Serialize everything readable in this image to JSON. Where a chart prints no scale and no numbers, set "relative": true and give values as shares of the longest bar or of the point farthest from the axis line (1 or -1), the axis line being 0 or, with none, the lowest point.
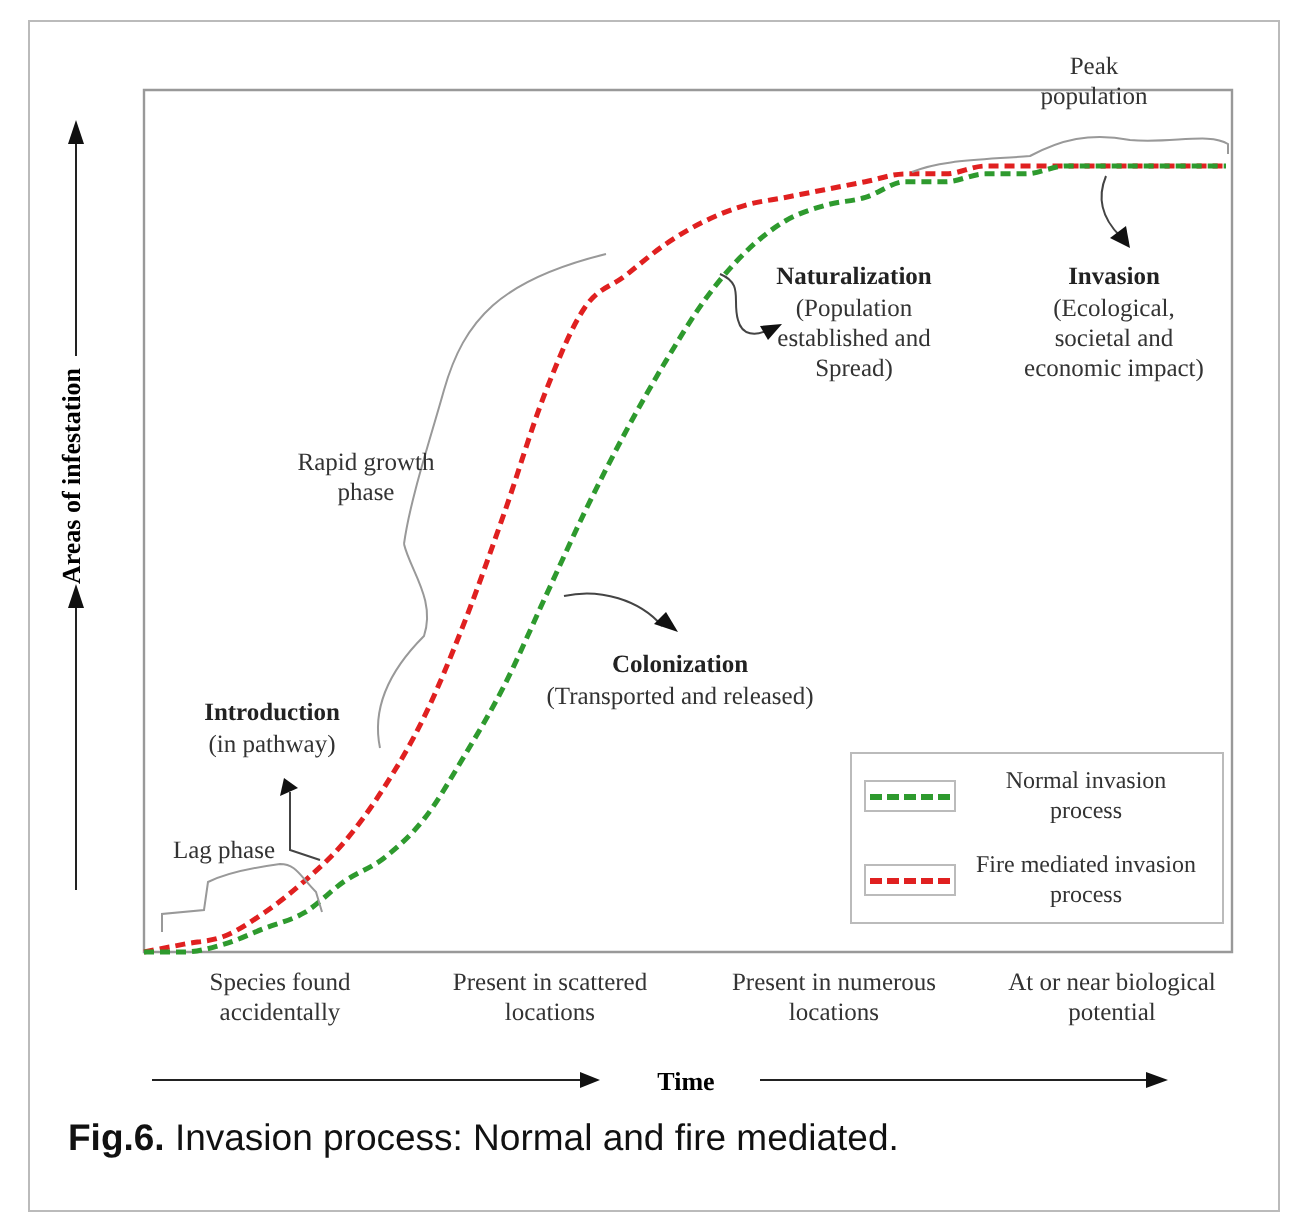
{
  "chart_data": {
    "type": "line",
    "relative": true,
    "title": "Fig.6. Invasion process: Normal and fire mediated.",
    "xlabel": "Time",
    "ylabel": "Areas of infestation",
    "categories": [
      null,
      null,
      null,
      null,
      null,
      null,
      null,
      null,
      null,
      null,
      null,
      null,
      null,
      null,
      null,
      null,
      null,
      null,
      null,
      null,
      null,
      null,
      null,
      null,
      null,
      null,
      null,
      null
    ],
    "series": [
      {
        "name": "Normal invasion process",
        "color": "#2e9a2e",
        "values": [
          0,
          0,
          0.01,
          0.03,
          0.05,
          0.09,
          0.12,
          0.17,
          0.25,
          0.34,
          0.45,
          0.56,
          0.66,
          0.75,
          0.83,
          0.89,
          0.93,
          0.95,
          0.96,
          0.98,
          0.98,
          0.99,
          0.99,
          1,
          1,
          1,
          1,
          1
        ]
      },
      {
        "name": "Fire mediated invasion process",
        "color": "#e02020",
        "values": [
          0,
          0.01,
          0.02,
          0.05,
          0.09,
          0.14,
          0.21,
          0.3,
          0.42,
          0.56,
          0.71,
          0.82,
          0.86,
          0.9,
          0.93,
          0.95,
          0.96,
          0.97,
          0.98,
          0.99,
          0.99,
          1,
          1,
          1,
          1,
          1,
          1,
          1
        ]
      }
    ],
    "line_style": "dashed",
    "marker": "none",
    "legend": "bottom right",
    "annotations": [
      "Lag phase",
      "Introduction",
      "(in pathway)",
      "Rapid growth phase",
      "Colonization",
      "(Transported and released)",
      "Naturalization",
      "(Population established and Spread)",
      "Invasion",
      "(Ecological, societal and economic impact)",
      "Peak population",
      "Species found accidentally",
      "Present in scattered locations",
      "Present in numerous locations",
      "At or near biological potential"
    ]
  }
}
